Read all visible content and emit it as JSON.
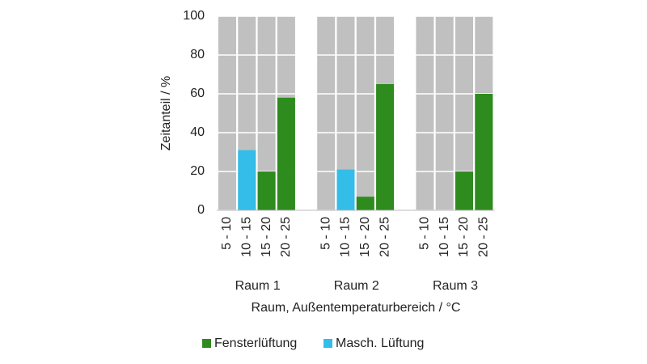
{
  "chart_data": {
    "type": "bar",
    "stacked": true,
    "y_label": "Zeitanteil / %",
    "x_label": "Raum, Außentemperaturbereich / °C",
    "groups": [
      "Raum 1",
      "Raum 2",
      "Raum 3"
    ],
    "categories": [
      "5 - 10",
      "10 - 15",
      "15 - 20",
      "20 - 25",
      "5 - 10",
      "10 - 15",
      "15 - 20",
      "20 - 25",
      "5 - 10",
      "10 - 15",
      "15 - 20",
      "20 - 25"
    ],
    "series": [
      {
        "name": "Fensterlüftung",
        "color": "#2e8b1e",
        "values": [
          0,
          0,
          20,
          58,
          0,
          0,
          7,
          65,
          0,
          0,
          20,
          60
        ]
      },
      {
        "name": "Masch. Lüftung",
        "color": "#33bde8",
        "values": [
          0,
          31,
          0,
          0,
          0,
          21,
          0,
          0,
          0,
          0,
          0,
          0
        ]
      }
    ],
    "background_color": "#c0c0c0",
    "ylim": [
      0,
      100
    ],
    "yticks": [
      0,
      20,
      40,
      60,
      80,
      100
    ],
    "grid": true,
    "legend": "bottom"
  }
}
